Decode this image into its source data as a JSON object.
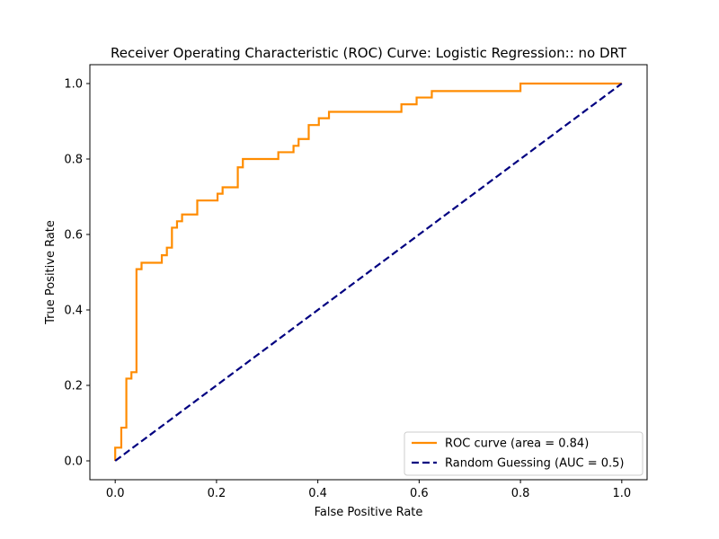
{
  "chart_data": {
    "type": "line",
    "title": "Receiver Operating Characteristic (ROC) Curve: Logistic Regression:: no DRT",
    "xlabel": "False Positive Rate",
    "ylabel": "True Positive Rate",
    "xlim": [
      -0.05,
      1.05
    ],
    "ylim": [
      -0.05,
      1.05
    ],
    "xticks": [
      "0.0",
      "0.2",
      "0.4",
      "0.6",
      "0.8",
      "1.0"
    ],
    "yticks": [
      "0.0",
      "0.2",
      "0.4",
      "0.6",
      "0.8",
      "1.0"
    ],
    "grid": false,
    "legend_position": "bottom-right",
    "series": [
      {
        "name": "ROC curve (area = 0.84)",
        "color": "#ff8c00",
        "style": "solid",
        "step": true,
        "points": [
          [
            0.0,
            0.0
          ],
          [
            0.0,
            0.035
          ],
          [
            0.012,
            0.035
          ],
          [
            0.012,
            0.088
          ],
          [
            0.022,
            0.088
          ],
          [
            0.022,
            0.218
          ],
          [
            0.032,
            0.218
          ],
          [
            0.032,
            0.235
          ],
          [
            0.042,
            0.235
          ],
          [
            0.042,
            0.508
          ],
          [
            0.052,
            0.508
          ],
          [
            0.052,
            0.525
          ],
          [
            0.092,
            0.525
          ],
          [
            0.092,
            0.545
          ],
          [
            0.102,
            0.545
          ],
          [
            0.102,
            0.565
          ],
          [
            0.112,
            0.565
          ],
          [
            0.112,
            0.618
          ],
          [
            0.122,
            0.618
          ],
          [
            0.122,
            0.635
          ],
          [
            0.132,
            0.635
          ],
          [
            0.132,
            0.653
          ],
          [
            0.162,
            0.653
          ],
          [
            0.162,
            0.69
          ],
          [
            0.202,
            0.69
          ],
          [
            0.202,
            0.708
          ],
          [
            0.212,
            0.708
          ],
          [
            0.212,
            0.725
          ],
          [
            0.242,
            0.725
          ],
          [
            0.242,
            0.778
          ],
          [
            0.252,
            0.778
          ],
          [
            0.252,
            0.8
          ],
          [
            0.322,
            0.8
          ],
          [
            0.322,
            0.818
          ],
          [
            0.352,
            0.818
          ],
          [
            0.352,
            0.835
          ],
          [
            0.362,
            0.835
          ],
          [
            0.362,
            0.853
          ],
          [
            0.382,
            0.853
          ],
          [
            0.382,
            0.89
          ],
          [
            0.402,
            0.89
          ],
          [
            0.402,
            0.908
          ],
          [
            0.422,
            0.908
          ],
          [
            0.422,
            0.925
          ],
          [
            0.565,
            0.925
          ],
          [
            0.565,
            0.945
          ],
          [
            0.595,
            0.945
          ],
          [
            0.595,
            0.963
          ],
          [
            0.625,
            0.963
          ],
          [
            0.625,
            0.98
          ],
          [
            0.8,
            0.98
          ],
          [
            0.8,
            1.0
          ],
          [
            1.0,
            1.0
          ]
        ]
      },
      {
        "name": "Random Guessing (AUC = 0.5)",
        "color": "#000080",
        "style": "dashed",
        "step": false,
        "points": [
          [
            0.0,
            0.0
          ],
          [
            1.0,
            1.0
          ]
        ]
      }
    ]
  }
}
